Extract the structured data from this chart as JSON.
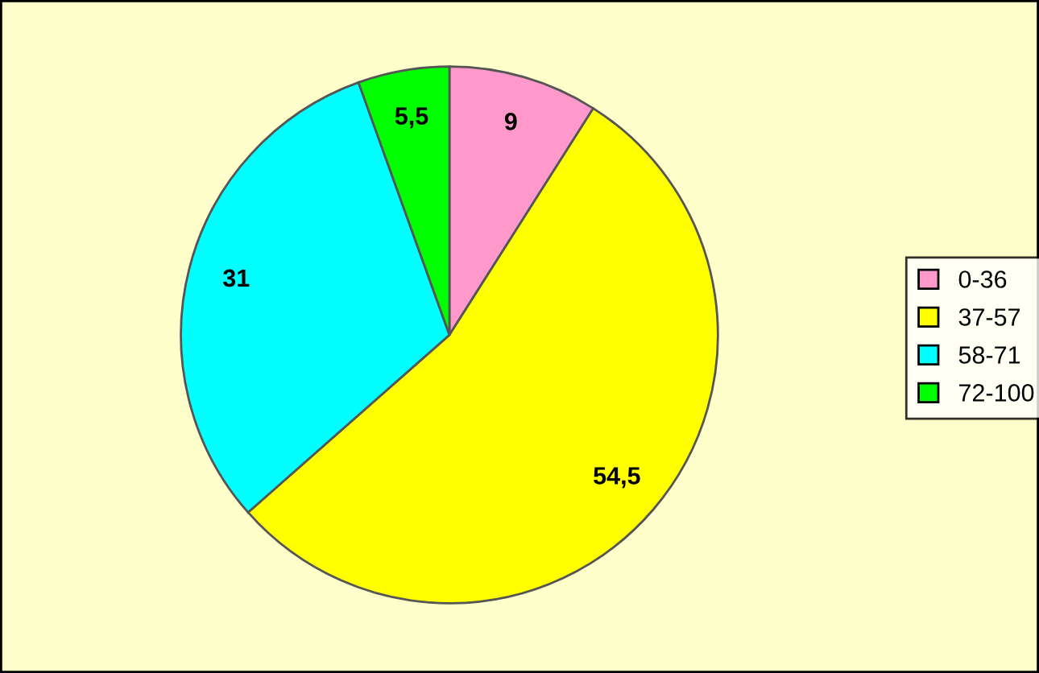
{
  "chart_data": {
    "type": "pie",
    "categories": [
      "0-36",
      "37-57",
      "58-71",
      "72-100"
    ],
    "values": [
      9,
      54.5,
      31,
      5.5
    ],
    "value_labels": [
      "9",
      "54,5",
      "31",
      "5,5"
    ],
    "colors": [
      "#ff99cc",
      "#ffff00",
      "#00ffff",
      "#00ff00"
    ],
    "legend": "right"
  }
}
